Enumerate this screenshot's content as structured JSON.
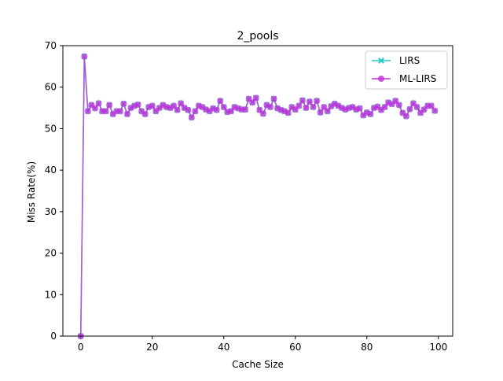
{
  "chart_data": {
    "type": "line",
    "title": "2_pools",
    "xlabel": "Cache Size",
    "ylabel": "Miss Rate(%)",
    "xlim": [
      -5,
      104
    ],
    "ylim": [
      0,
      70
    ],
    "xticks": [
      0,
      20,
      40,
      60,
      80,
      100
    ],
    "yticks": [
      0,
      10,
      20,
      30,
      40,
      50,
      60,
      70
    ],
    "grid": false,
    "legend_position": "top-right",
    "series": [
      {
        "name": "LIRS",
        "color": "#20c8c8",
        "marker": "x",
        "x": [
          0,
          1,
          2,
          3,
          4,
          5,
          6,
          7,
          8,
          9,
          10,
          11,
          12,
          13,
          14,
          15,
          16,
          17,
          18,
          19,
          20,
          21,
          22,
          23,
          24,
          25,
          26,
          27,
          28,
          29,
          30,
          31,
          32,
          33,
          34,
          35,
          36,
          37,
          38,
          39,
          40,
          41,
          42,
          43,
          44,
          45,
          46,
          47,
          48,
          49,
          50,
          51,
          52,
          53,
          54,
          55,
          56,
          57,
          58,
          59,
          60,
          61,
          62,
          63,
          64,
          65,
          66,
          67,
          68,
          69,
          70,
          71,
          72,
          73,
          74,
          75,
          76,
          77,
          78,
          79,
          80,
          81,
          82,
          83,
          84,
          85,
          86,
          87,
          88,
          89,
          90,
          91,
          92,
          93,
          94,
          95,
          96,
          97,
          98,
          99
        ],
        "y": [
          0,
          67.4,
          54.2,
          55.7,
          54.9,
          56.1,
          54.2,
          54.2,
          55.7,
          53.5,
          54.2,
          54.2,
          56.0,
          53.5,
          55.0,
          55.5,
          55.8,
          54.2,
          53.5,
          55.2,
          55.5,
          54.2,
          55.0,
          55.7,
          55.2,
          55.0,
          55.5,
          54.5,
          56.1,
          55.0,
          54.5,
          52.7,
          54.2,
          55.5,
          55.2,
          54.6,
          54.2,
          54.9,
          54.5,
          56.7,
          55.2,
          54.0,
          54.2,
          55.2,
          54.9,
          54.6,
          54.6,
          57.2,
          56.3,
          57.4,
          54.5,
          53.6,
          55.7,
          55.2,
          57.2,
          54.9,
          54.5,
          54.2,
          53.8,
          55.2,
          54.6,
          55.5,
          56.8,
          55.0,
          56.5,
          55.2,
          56.7,
          53.9,
          55.2,
          54.2,
          55.4,
          56.0,
          55.5,
          55.0,
          54.6,
          55.0,
          55.2,
          54.6,
          54.9,
          53.2,
          53.9,
          53.5,
          55.0,
          55.3,
          54.5,
          55.2,
          56.3,
          55.9,
          56.7,
          55.7,
          53.8,
          53.0,
          54.7,
          56.1,
          55.2,
          53.8,
          54.6,
          55.5,
          55.5,
          54.3
        ]
      },
      {
        "name": "ML-LIRS",
        "color": "#c030d8",
        "marker": "o",
        "x": [
          0,
          1,
          2,
          3,
          4,
          5,
          6,
          7,
          8,
          9,
          10,
          11,
          12,
          13,
          14,
          15,
          16,
          17,
          18,
          19,
          20,
          21,
          22,
          23,
          24,
          25,
          26,
          27,
          28,
          29,
          30,
          31,
          32,
          33,
          34,
          35,
          36,
          37,
          38,
          39,
          40,
          41,
          42,
          43,
          44,
          45,
          46,
          47,
          48,
          49,
          50,
          51,
          52,
          53,
          54,
          55,
          56,
          57,
          58,
          59,
          60,
          61,
          62,
          63,
          64,
          65,
          66,
          67,
          68,
          69,
          70,
          71,
          72,
          73,
          74,
          75,
          76,
          77,
          78,
          79,
          80,
          81,
          82,
          83,
          84,
          85,
          86,
          87,
          88,
          89,
          90,
          91,
          92,
          93,
          94,
          95,
          96,
          97,
          98,
          99
        ],
        "y": [
          0,
          67.4,
          54.2,
          55.7,
          54.9,
          56.1,
          54.2,
          54.2,
          55.7,
          53.5,
          54.2,
          54.2,
          56.0,
          53.5,
          55.0,
          55.5,
          55.8,
          54.2,
          53.5,
          55.2,
          55.5,
          54.2,
          55.0,
          55.7,
          55.2,
          55.0,
          55.5,
          54.5,
          56.1,
          55.0,
          54.5,
          52.7,
          54.2,
          55.5,
          55.2,
          54.6,
          54.2,
          54.9,
          54.5,
          56.7,
          55.2,
          54.0,
          54.2,
          55.2,
          54.9,
          54.6,
          54.6,
          57.2,
          56.3,
          57.4,
          54.5,
          53.6,
          55.7,
          55.2,
          57.2,
          54.9,
          54.5,
          54.2,
          53.8,
          55.2,
          54.6,
          55.5,
          56.8,
          55.0,
          56.5,
          55.2,
          56.7,
          53.9,
          55.2,
          54.2,
          55.4,
          56.0,
          55.5,
          55.0,
          54.6,
          55.0,
          55.2,
          54.6,
          54.9,
          53.2,
          53.9,
          53.5,
          55.0,
          55.3,
          54.5,
          55.2,
          56.3,
          55.9,
          56.7,
          55.7,
          53.8,
          53.0,
          54.7,
          56.1,
          55.2,
          53.8,
          54.6,
          55.5,
          55.5,
          54.3
        ]
      }
    ]
  }
}
